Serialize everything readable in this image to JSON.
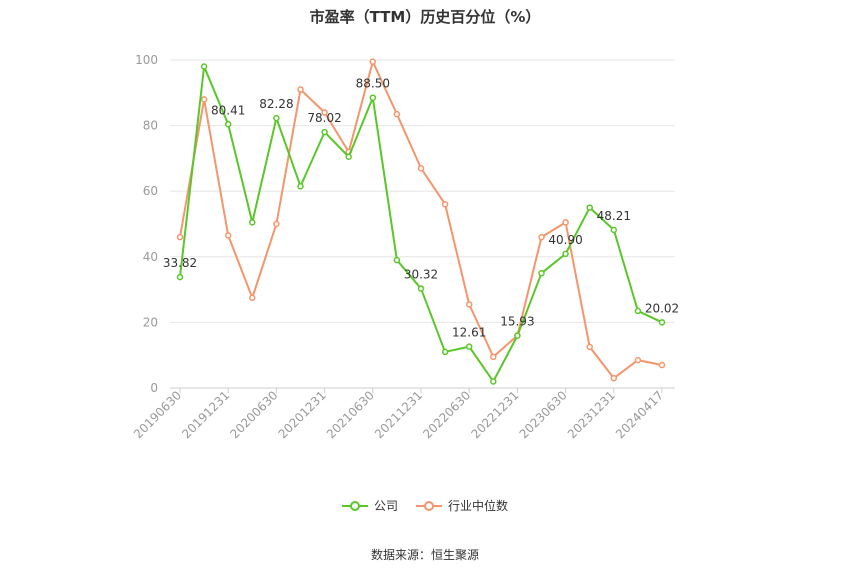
{
  "chart_data": {
    "type": "line",
    "title": "市盈率（TTM）历史百分位（%）",
    "source": "数据来源：恒生聚源",
    "ylim": [
      0,
      100
    ],
    "yticks": [
      0,
      20,
      40,
      60,
      80,
      100
    ],
    "xtick_labels": [
      "20190630",
      "20191231",
      "20200630",
      "20201231",
      "20210630",
      "20211231",
      "20220630",
      "20221231",
      "20230630",
      "20231231",
      "20240417"
    ],
    "points_count": 21,
    "series": [
      {
        "name": "公司",
        "color": "#5ac728",
        "values": [
          33.82,
          98,
          80.41,
          50.5,
          82.28,
          61.5,
          78.02,
          70.5,
          88.5,
          39,
          30.32,
          11,
          12.61,
          2,
          15.93,
          35,
          40.9,
          55,
          48.21,
          23.5,
          20.02
        ],
        "labels": {
          "0": "33.82",
          "2": "80.41",
          "4": "82.28",
          "6": "78.02",
          "8": "88.50",
          "10": "30.32",
          "12": "12.61",
          "14": "15.93",
          "16": "40.90",
          "18": "48.21",
          "20": "20.02"
        }
      },
      {
        "name": "行业中位数",
        "color": "#f5956b",
        "values": [
          46,
          88,
          46.5,
          27.5,
          50,
          91,
          84,
          72,
          99.5,
          83.5,
          67,
          56,
          25.5,
          9.5,
          16,
          46,
          50.5,
          12.5,
          3,
          8.5,
          7
        ]
      }
    ]
  }
}
